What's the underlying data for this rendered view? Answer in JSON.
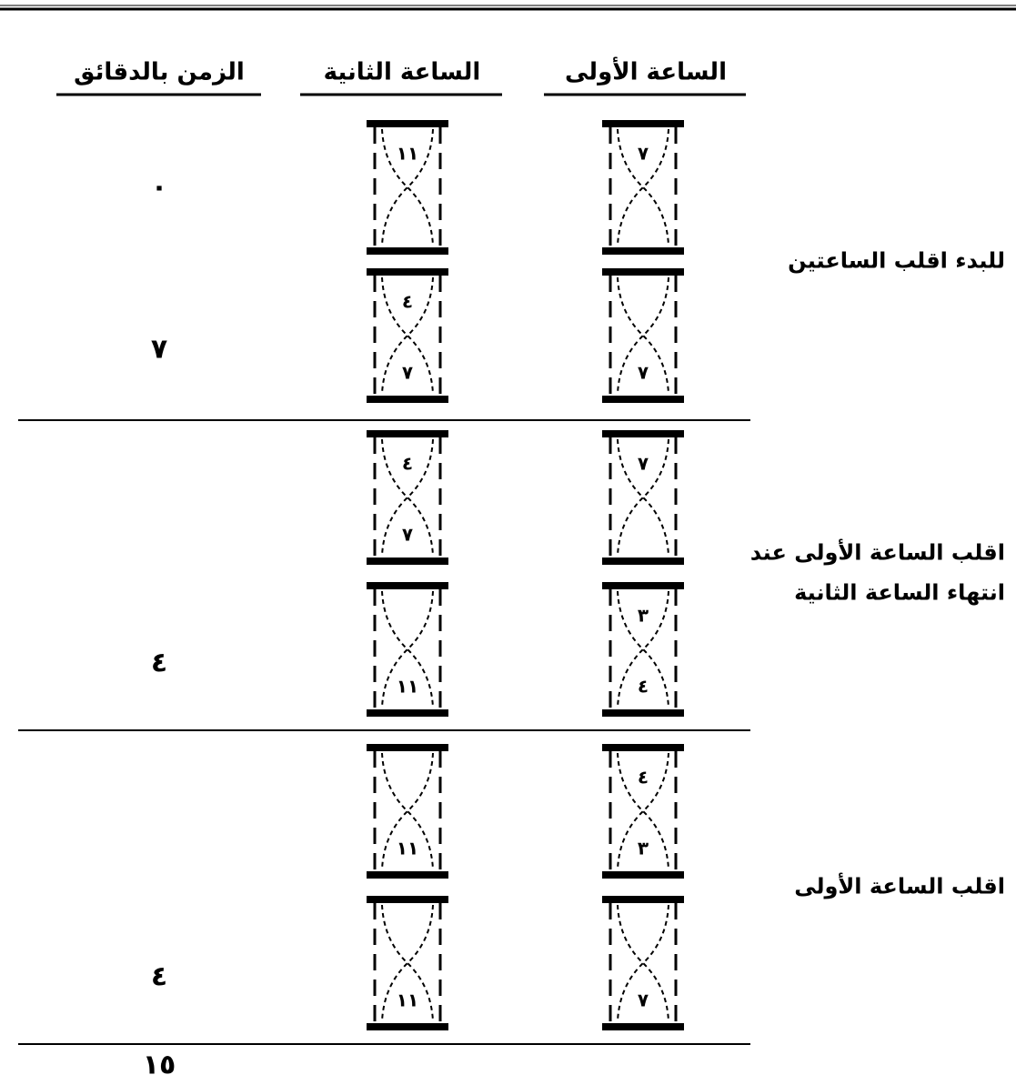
{
  "headers": [
    "الساعة الأولى",
    "الساعة الثانية",
    "الزمن بالدقائق"
  ],
  "steps": [
    {
      "lines": [
        "للبدء اقلب الساعتين"
      ],
      "rows": [
        {
          "first": {
            "top": "٧"
          },
          "second": {
            "top": "١١"
          },
          "time": "٠"
        },
        {
          "first": {
            "bottom": "٧"
          },
          "second": {
            "top": "٤",
            "bottom": "٧"
          },
          "time": "٧"
        }
      ]
    },
    {
      "lines": [
        "اقلب الساعة الأولى عند",
        "انتهاء الساعة الثانية"
      ],
      "rows": [
        {
          "first": {
            "top": "٧"
          },
          "second": {
            "top": "٤",
            "bottom": "٧"
          }
        },
        {
          "first": {
            "top": "٣",
            "bottom": "٤"
          },
          "second": {
            "bottom": "١١"
          },
          "time": "٤"
        }
      ]
    },
    {
      "lines": [
        "اقلب الساعة الأولى"
      ],
      "rows": [
        {
          "first": {
            "top": "٤",
            "bottom": "٣"
          },
          "second": {
            "bottom": "١١"
          }
        },
        {
          "first": {
            "bottom": "٧"
          },
          "second": {
            "bottom": "١١"
          },
          "time": "٤"
        }
      ]
    }
  ],
  "total": "١٥"
}
